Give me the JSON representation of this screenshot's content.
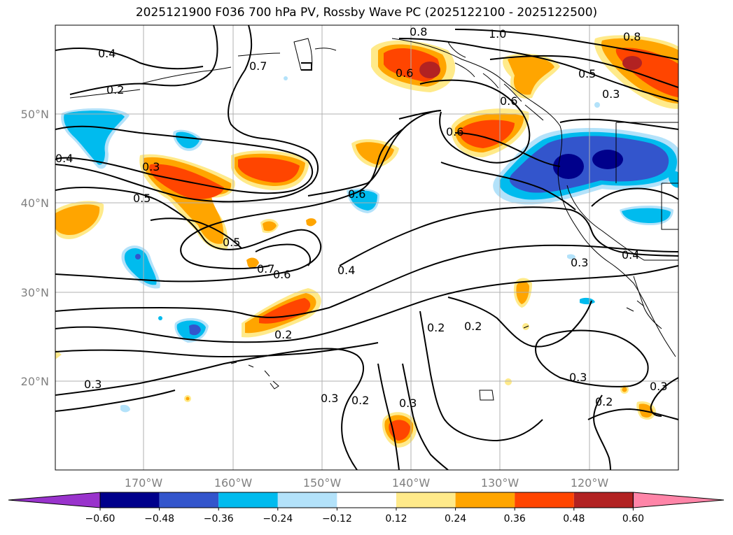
{
  "title": "2025121900 F036 700 hPa PV, Rossby Wave PC (2025122100 - 2025122500)",
  "map": {
    "lat_labels": [
      "50°N",
      "40°N",
      "30°N",
      "20°N"
    ],
    "lon_labels": [
      "170°W",
      "160°W",
      "150°W",
      "140°W",
      "130°W",
      "120°W"
    ],
    "contour_labels": [
      "0.4",
      "0.2",
      "0.4",
      "0.3",
      "0.5",
      "0.5",
      "0.7",
      "0.6",
      "0.4",
      "0.6",
      "0.6",
      "0.8",
      "1.0",
      "0.8",
      "0.5",
      "0.3",
      "0.6",
      "0.3",
      "0.4",
      "0.2",
      "0.2",
      "0.2",
      "0.3",
      "0.2",
      "0.3",
      "0.3",
      "0.3",
      "0.2",
      "0.3",
      "0.7",
      "0.6"
    ]
  },
  "colorbar": {
    "ticks": [
      "−0.60",
      "−0.48",
      "−0.36",
      "−0.24",
      "−0.12",
      "0.12",
      "0.24",
      "0.36",
      "0.48",
      "0.60"
    ],
    "colors": [
      "#9933cc",
      "#00008b",
      "#3355cc",
      "#00bbee",
      "#b3e2fa",
      "#ffffff",
      "#ffea8a",
      "#ffa500",
      "#ff4500",
      "#b22222",
      "#ff85a8"
    ]
  }
}
